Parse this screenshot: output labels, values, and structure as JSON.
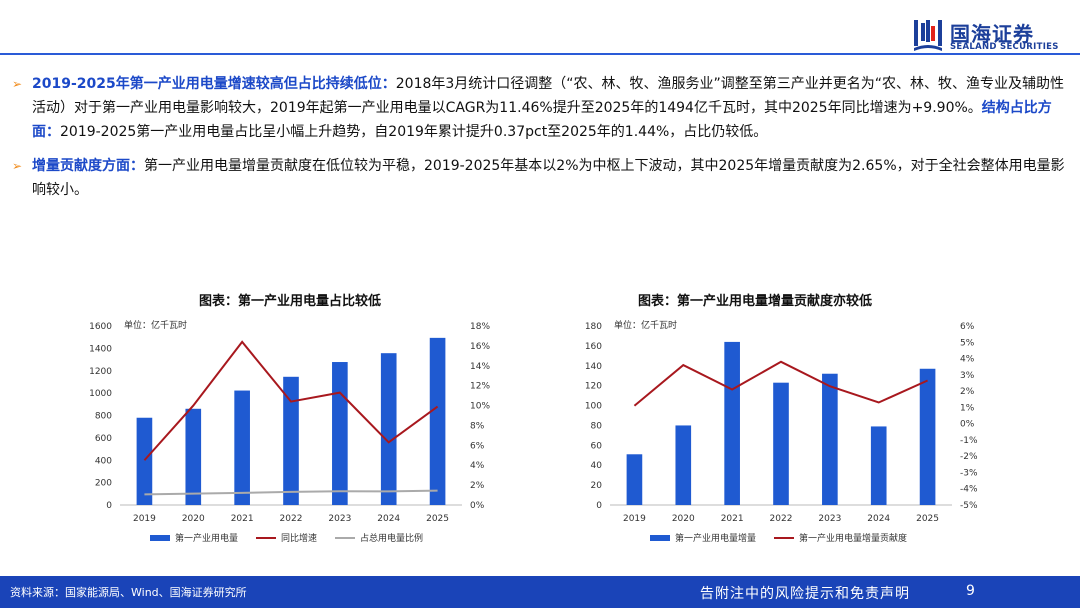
{
  "brand": {
    "name_cn": "国海证券",
    "name_en": "SEALAND SECURITIES"
  },
  "bullets": [
    {
      "head": "2019-2025年第一产业用电量增速较高但占比持续低位：",
      "body1": "2018年3月统计口径调整（“农、林、牧、渔服务业”调整至第三产业并更名为“农、林、牧、渔专业及辅助性活动）对于第一产业用电量影响较大，2019年起第一产业用电量以CAGR为11.46%提升至2025年的1494亿千瓦时，其中2025年同比增速为+9.90%。",
      "head2": "结构占比方面：",
      "body2": "2019-2025第一产业用电量占比呈小幅上升趋势，自2019年累计提升0.37pct至2025年的1.44%，占比仍较低。"
    },
    {
      "head": "增量贡献度方面：",
      "body1": "第一产业用电量增量贡献度在低位较为平稳，2019-2025年基本以2%为中枢上下波动，其中2025年增量贡献度为2.65%，对于全社会整体用电量影响较小。"
    }
  ],
  "chart_data": [
    {
      "type": "bar",
      "title": "图表：第一产业用电量占比较低",
      "unit_label": "单位：亿千瓦时",
      "categories": [
        "2019",
        "2020",
        "2021",
        "2022",
        "2023",
        "2024",
        "2025"
      ],
      "series": [
        {
          "name": "第一产业用电量",
          "type": "bar",
          "axis": "left",
          "values": [
            780,
            860,
            1023,
            1146,
            1278,
            1357,
            1494
          ]
        },
        {
          "name": "同比增速",
          "type": "line",
          "axis": "right",
          "values": [
            4.5,
            10.0,
            16.4,
            10.4,
            11.3,
            6.3,
            9.9
          ]
        },
        {
          "name": "占总用电量比例",
          "type": "line",
          "axis": "right",
          "values": [
            1.07,
            1.15,
            1.22,
            1.32,
            1.38,
            1.37,
            1.44
          ]
        }
      ],
      "y_left": {
        "min": 0,
        "max": 1600,
        "step": 200
      },
      "y_right": {
        "min": 0,
        "max": 18,
        "step": 2,
        "suffix": "%"
      },
      "colors": {
        "bar": "#1f5ad1",
        "line1": "#a8181e",
        "line2": "#aaaaaa"
      }
    },
    {
      "type": "bar",
      "title": "图表：第一产业用电量增量贡献度亦较低",
      "unit_label": "单位：亿千瓦时",
      "categories": [
        "2019",
        "2020",
        "2021",
        "2022",
        "2023",
        "2024",
        "2025"
      ],
      "series": [
        {
          "name": "第一产业用电量增量",
          "type": "bar",
          "axis": "left",
          "values": [
            51,
            80,
            164,
            123,
            132,
            79,
            137
          ]
        },
        {
          "name": "第一产业用电量增量贡献度",
          "type": "line",
          "axis": "right",
          "values": [
            1.1,
            3.6,
            2.1,
            3.8,
            2.3,
            1.3,
            2.65
          ]
        }
      ],
      "y_left": {
        "min": 0,
        "max": 180,
        "step": 20
      },
      "y_right": {
        "min": -5,
        "max": 6,
        "step": 1,
        "suffix": "%"
      },
      "colors": {
        "bar": "#1f5ad1",
        "line1": "#a8181e"
      }
    }
  ],
  "footer": {
    "source": "资料来源：国家能源局、Wind、国海证券研究所",
    "disclaimer": "告附注中的风险提示和免责声明",
    "page": "9"
  }
}
